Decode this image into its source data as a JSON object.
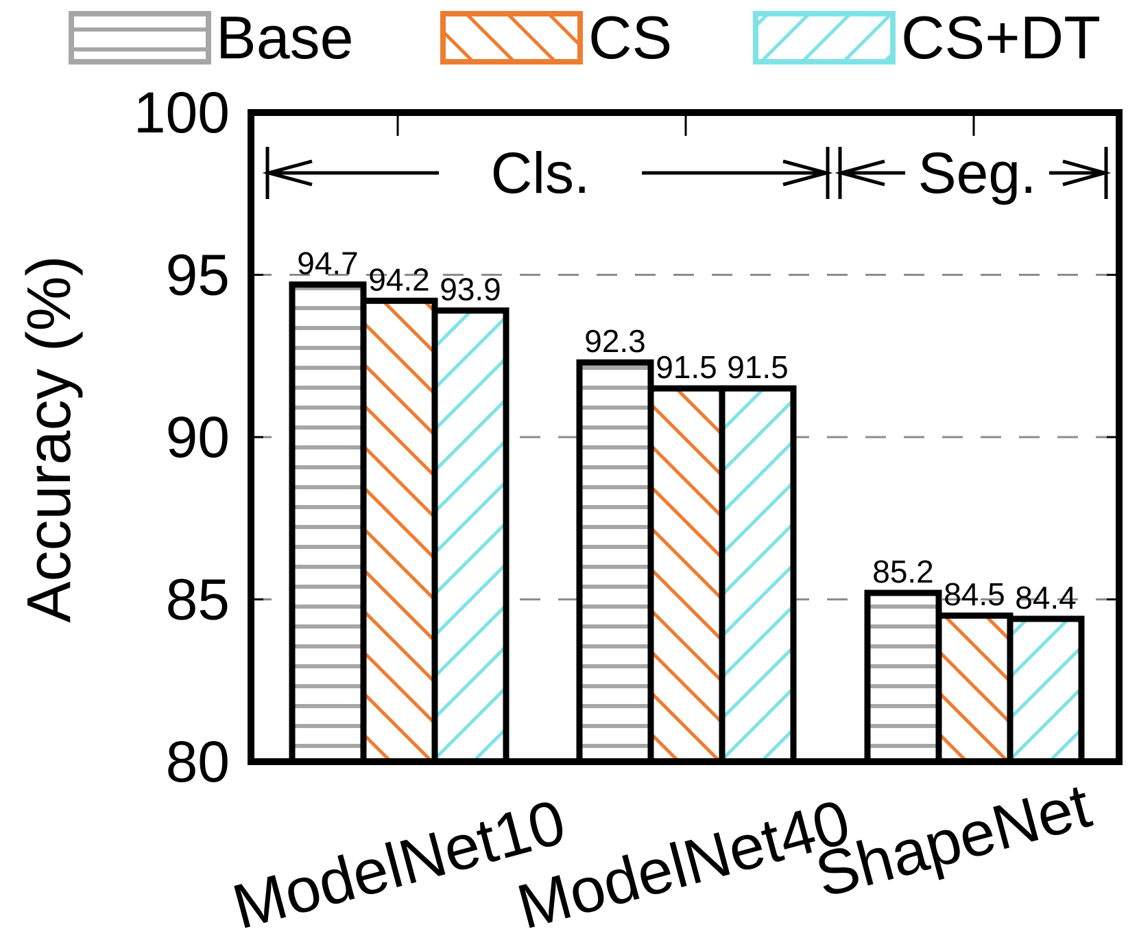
{
  "chart_data": {
    "type": "bar",
    "title": "",
    "xlabel": "",
    "ylabel": "Accuracy (%)",
    "ylim": [
      80,
      100
    ],
    "yticks": [
      "80",
      "85",
      "90",
      "95",
      "100"
    ],
    "grid": "dashed-horizontal",
    "legend_position": "top",
    "categories": [
      "ModelNet10",
      "ModelNet40",
      "ShapeNet"
    ],
    "series": [
      {
        "name": "Base",
        "values": [
          94.7,
          92.3,
          85.2
        ],
        "labels": [
          "94.7",
          "92.3",
          "85.2"
        ],
        "color": "#a6a6a6",
        "pattern": "horizontal"
      },
      {
        "name": "CS",
        "values": [
          94.2,
          91.5,
          84.5
        ],
        "labels": [
          "94.2",
          "91.5",
          "84.5"
        ],
        "color": "#ed7d31",
        "pattern": "backslash"
      },
      {
        "name": "CS+DT",
        "values": [
          93.9,
          91.5,
          84.4
        ],
        "labels": [
          "93.9",
          "91.5",
          "84.4"
        ],
        "color": "#7fe3e6",
        "pattern": "slash"
      }
    ],
    "annotations": [
      {
        "text": "Cls.",
        "spans": [
          "ModelNet10",
          "ModelNet40"
        ]
      },
      {
        "text": "Seg.",
        "spans": [
          "ShapeNet"
        ]
      }
    ]
  }
}
